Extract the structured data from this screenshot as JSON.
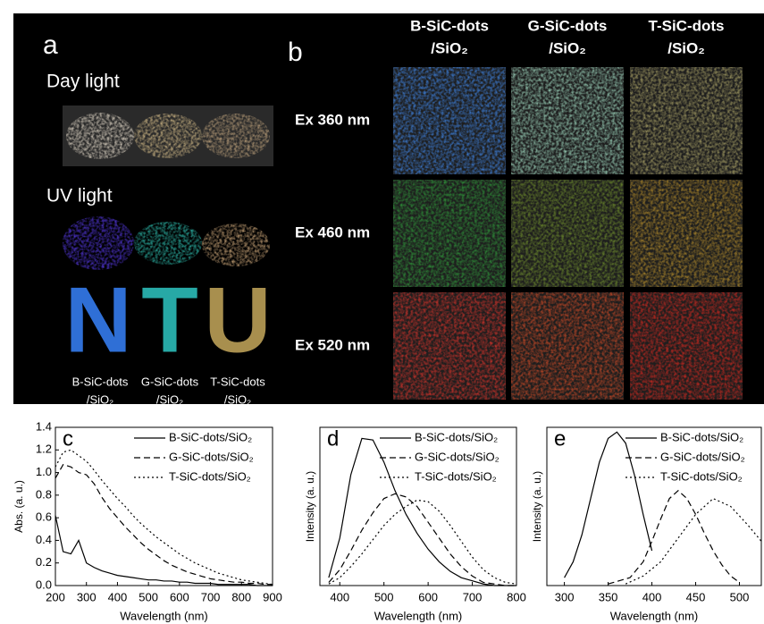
{
  "panel_a": {
    "label": "a",
    "day_light": "Day light",
    "uv_light": "UV light",
    "letters": [
      "N",
      "T",
      "U"
    ],
    "captions": [
      [
        "B-SiC-dots",
        "/SiO₂"
      ],
      [
        "G-SiC-dots",
        "/SiO₂"
      ],
      [
        "T-SiC-dots",
        "/SiO₂"
      ]
    ]
  },
  "panel_b": {
    "label": "b",
    "columns": [
      [
        "B-SiC-dots",
        "/SiO₂"
      ],
      [
        "G-SiC-dots",
        "/SiO₂"
      ],
      [
        "T-SiC-dots",
        "/SiO₂"
      ]
    ],
    "rows": [
      "Ex 360 nm",
      "Ex 460 nm",
      "Ex 520 nm"
    ]
  },
  "chart_data": [
    {
      "type": "line",
      "panel_label": "c",
      "xlabel": "Wavelength (nm)",
      "ylabel": "Abs. (a. u.)",
      "xlim": [
        200,
        900
      ],
      "xticks": [
        200,
        300,
        400,
        500,
        600,
        700,
        800,
        900
      ],
      "ylim": [
        0,
        1.4
      ],
      "yticks": [
        {
          "value": 0,
          "label": "0.0"
        },
        0.2,
        0.4,
        0.6,
        0.8,
        {
          "value": 1,
          "label": "1.0"
        },
        1.2,
        1.4
      ],
      "series": [
        {
          "name": "B-SiC-dots/SiO₂",
          "color": "#000000",
          "dash": "solid",
          "x": [
            200,
            225,
            250,
            275,
            300,
            325,
            350,
            375,
            400,
            425,
            450,
            475,
            500,
            525,
            550,
            575,
            600,
            625,
            650,
            675,
            700,
            725,
            750,
            775,
            800,
            825,
            850,
            875,
            900
          ],
          "values": [
            0.62,
            0.3,
            0.28,
            0.4,
            0.2,
            0.16,
            0.13,
            0.11,
            0.09,
            0.08,
            0.07,
            0.06,
            0.05,
            0.05,
            0.04,
            0.04,
            0.03,
            0.03,
            0.02,
            0.02,
            0.02,
            0.01,
            0.01,
            0.01,
            0.01,
            0.01,
            0.0,
            0.0,
            0.0
          ]
        },
        {
          "name": "G-SiC-dots/SiO₂",
          "color": "#000000",
          "dash": "dashed",
          "x": [
            200,
            225,
            250,
            275,
            300,
            325,
            350,
            375,
            400,
            425,
            450,
            475,
            500,
            525,
            550,
            575,
            600,
            625,
            650,
            675,
            700,
            725,
            750,
            775,
            800,
            825,
            850,
            875,
            900
          ],
          "values": [
            0.95,
            1.07,
            1.05,
            1.0,
            0.98,
            0.9,
            0.78,
            0.68,
            0.6,
            0.52,
            0.45,
            0.38,
            0.32,
            0.27,
            0.22,
            0.18,
            0.15,
            0.12,
            0.1,
            0.08,
            0.06,
            0.05,
            0.04,
            0.03,
            0.03,
            0.02,
            0.02,
            0.01,
            0.01
          ]
        },
        {
          "name": "T-SiC-dots/SiO₂",
          "color": "#000000",
          "dash": "dotted",
          "x": [
            200,
            225,
            250,
            275,
            300,
            325,
            350,
            375,
            400,
            425,
            450,
            475,
            500,
            525,
            550,
            575,
            600,
            625,
            650,
            675,
            700,
            725,
            750,
            775,
            800,
            825,
            850,
            875,
            900
          ],
          "values": [
            1.05,
            1.18,
            1.2,
            1.15,
            1.1,
            1.02,
            0.93,
            0.85,
            0.77,
            0.7,
            0.62,
            0.55,
            0.49,
            0.43,
            0.38,
            0.33,
            0.28,
            0.24,
            0.2,
            0.17,
            0.14,
            0.11,
            0.09,
            0.07,
            0.05,
            0.04,
            0.03,
            0.02,
            0.01
          ]
        }
      ]
    },
    {
      "type": "line",
      "panel_label": "d",
      "xlabel": "Wavelength (nm)",
      "ylabel": "Intensity (a. u.)",
      "xlim": [
        355,
        800
      ],
      "xticks": [
        400,
        500,
        600,
        700,
        800
      ],
      "ylim": [
        0,
        1
      ],
      "series": [
        {
          "name": "B-SiC-dots/SiO₂",
          "color": "#000000",
          "dash": "solid",
          "x": [
            375,
            400,
            425,
            450,
            475,
            500,
            525,
            550,
            575,
            600,
            625,
            650,
            675,
            700,
            725,
            750,
            775,
            800
          ],
          "values": [
            0.05,
            0.3,
            0.7,
            0.93,
            0.92,
            0.78,
            0.6,
            0.45,
            0.33,
            0.23,
            0.15,
            0.09,
            0.05,
            0.03,
            0.01,
            0,
            0,
            0
          ]
        },
        {
          "name": "G-SiC-dots/SiO₂",
          "color": "#000000",
          "dash": "dashed",
          "x": [
            375,
            400,
            425,
            450,
            475,
            500,
            525,
            550,
            575,
            600,
            625,
            650,
            675,
            700,
            725,
            750,
            775,
            800
          ],
          "values": [
            0.02,
            0.1,
            0.22,
            0.35,
            0.46,
            0.55,
            0.58,
            0.56,
            0.5,
            0.4,
            0.3,
            0.2,
            0.12,
            0.06,
            0.02,
            0.01,
            0,
            0
          ]
        },
        {
          "name": "T-SiC-dots/SiO₂",
          "color": "#000000",
          "dash": "dotted",
          "x": [
            375,
            400,
            425,
            450,
            475,
            500,
            525,
            550,
            575,
            600,
            625,
            650,
            675,
            700,
            725,
            750,
            775,
            800
          ],
          "values": [
            0.01,
            0.05,
            0.12,
            0.2,
            0.29,
            0.38,
            0.45,
            0.5,
            0.54,
            0.53,
            0.47,
            0.38,
            0.28,
            0.18,
            0.1,
            0.05,
            0.02,
            0.01
          ]
        }
      ]
    },
    {
      "type": "line",
      "panel_label": "e",
      "xlabel": "Wavelength (nm)",
      "ylabel": "Intensity (a. u.)",
      "xlim": [
        280,
        525
      ],
      "xticks": [
        300,
        350,
        400,
        450,
        500
      ],
      "ylim": [
        0,
        1
      ],
      "series": [
        {
          "name": "B-SiC-dots/SiO₂",
          "color": "#000000",
          "dash": "solid",
          "x": [
            300,
            310,
            320,
            330,
            340,
            350,
            360,
            370,
            380,
            390,
            400
          ],
          "values": [
            0.05,
            0.15,
            0.32,
            0.55,
            0.78,
            0.93,
            0.97,
            0.9,
            0.7,
            0.45,
            0.22
          ]
        },
        {
          "name": "G-SiC-dots/SiO₂",
          "color": "#000000",
          "dash": "dashed",
          "x": [
            350,
            375,
            390,
            400,
            410,
            420,
            430,
            440,
            450,
            460,
            470,
            480,
            490,
            500
          ],
          "values": [
            0.01,
            0.05,
            0.15,
            0.28,
            0.42,
            0.55,
            0.6,
            0.55,
            0.45,
            0.33,
            0.22,
            0.13,
            0.06,
            0.02
          ]
        },
        {
          "name": "T-SiC-dots/SiO₂",
          "color": "#000000",
          "dash": "dotted",
          "x": [
            370,
            390,
            410,
            430,
            450,
            470,
            490,
            510,
            525
          ],
          "values": [
            0.01,
            0.06,
            0.15,
            0.3,
            0.45,
            0.55,
            0.5,
            0.38,
            0.28
          ]
        }
      ]
    }
  ]
}
